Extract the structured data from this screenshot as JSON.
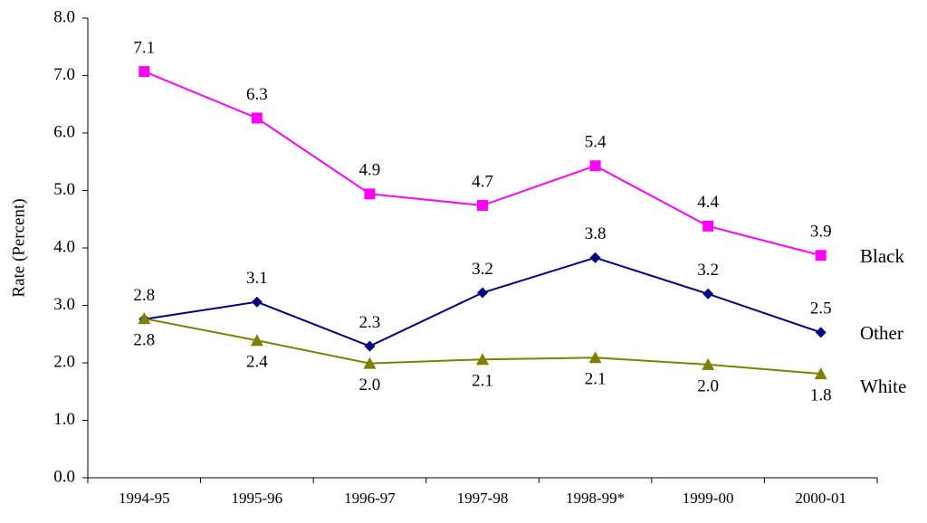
{
  "chart_data": {
    "type": "line",
    "y_label": "Rate (Percent)",
    "categories": [
      "1994-95",
      "1995-96",
      "1996-97",
      "1997-98",
      "1998-99*",
      "1999-00",
      "2000-01"
    ],
    "series": [
      {
        "name": "Black",
        "color": "#ff00ff",
        "values": [
          7.07,
          6.26,
          4.94,
          4.74,
          5.43,
          4.38,
          3.87
        ],
        "value_labels": [
          "7.1",
          "6.3",
          "4.9",
          "4.7",
          "5.4",
          "4.4",
          "3.9"
        ]
      },
      {
        "name": "Other",
        "color": "#000080",
        "values": [
          2.76,
          3.06,
          2.29,
          3.22,
          3.83,
          3.2,
          2.53
        ],
        "value_labels": [
          "2.8",
          "3.1",
          "2.3",
          "3.2",
          "3.8",
          "3.2",
          "2.5"
        ]
      },
      {
        "name": "White",
        "color": "#808000",
        "values": [
          2.77,
          2.39,
          1.99,
          2.06,
          2.09,
          1.97,
          1.81
        ],
        "value_labels": [
          "2.8",
          "2.4",
          "2.0",
          "2.1",
          "2.1",
          "2.0",
          "1.8"
        ]
      }
    ],
    "ylim": [
      0,
      8
    ],
    "yticks": [
      {
        "value": 0,
        "label": "0.0"
      },
      {
        "value": 1,
        "label": "1.0"
      },
      {
        "value": 2,
        "label": "2.0"
      },
      {
        "value": 3,
        "label": "3.0"
      },
      {
        "value": 4,
        "label": "4.0"
      },
      {
        "value": 5,
        "label": "5.0"
      },
      {
        "value": 6,
        "label": "6.0"
      },
      {
        "value": 7,
        "label": "7.0"
      },
      {
        "value": 8,
        "label": "8.0"
      }
    ],
    "grid": false
  }
}
